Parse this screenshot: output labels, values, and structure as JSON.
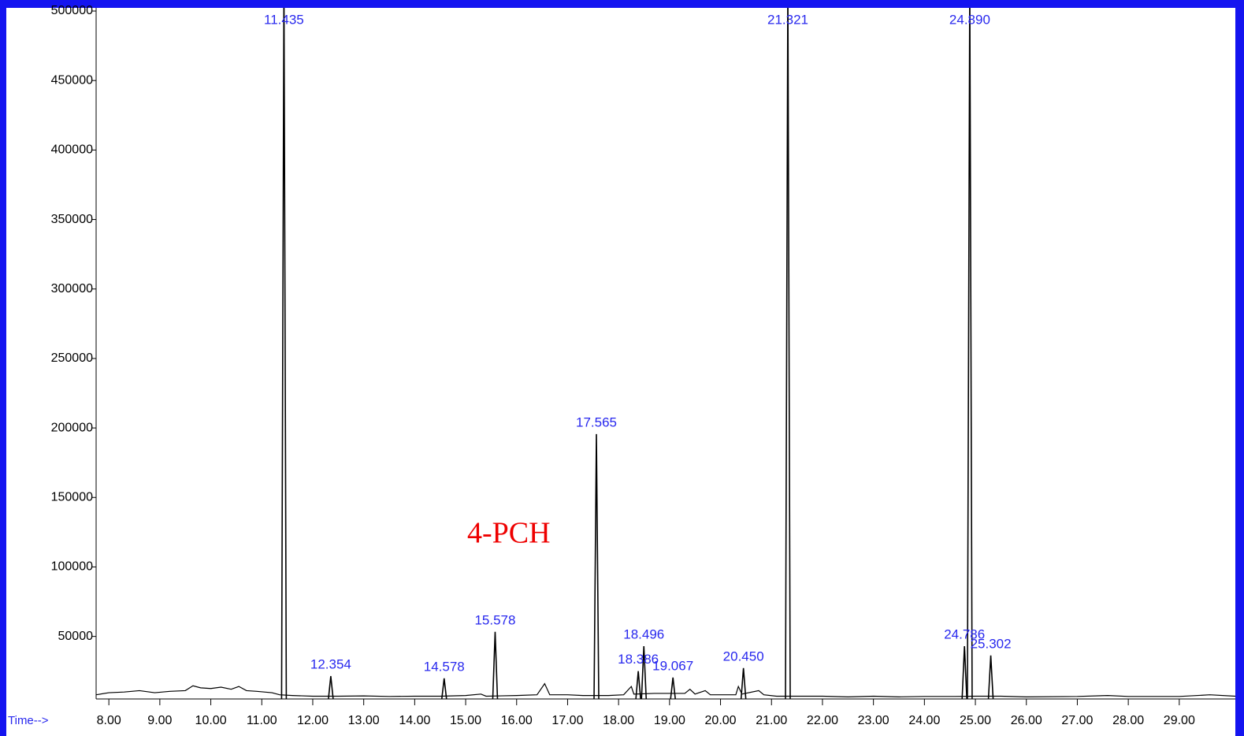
{
  "chart_data": {
    "type": "chromatogram",
    "x_label": "Time-->",
    "annotation": "4-PCH",
    "xlim": [
      7.75,
      30.1
    ],
    "ylim": [
      5000,
      505000
    ],
    "xticks": [
      {
        "value": 8,
        "label": "8.00"
      },
      {
        "value": 9,
        "label": "9.00"
      },
      {
        "value": 10,
        "label": "10.00"
      },
      {
        "value": 11,
        "label": "11.00"
      },
      {
        "value": 12,
        "label": "12.00"
      },
      {
        "value": 13,
        "label": "13.00"
      },
      {
        "value": 14,
        "label": "14.00"
      },
      {
        "value": 15,
        "label": "15.00"
      },
      {
        "value": 16,
        "label": "16.00"
      },
      {
        "value": 17,
        "label": "17.00"
      },
      {
        "value": 18,
        "label": "18.00"
      },
      {
        "value": 19,
        "label": "19.00"
      },
      {
        "value": 20,
        "label": "20.00"
      },
      {
        "value": 21,
        "label": "21.00"
      },
      {
        "value": 22,
        "label": "22.00"
      },
      {
        "value": 23,
        "label": "23.00"
      },
      {
        "value": 24,
        "label": "24.00"
      },
      {
        "value": 25,
        "label": "25.00"
      },
      {
        "value": 26,
        "label": "26.00"
      },
      {
        "value": 27,
        "label": "27.00"
      },
      {
        "value": 28,
        "label": "28.00"
      },
      {
        "value": 29,
        "label": "29.00"
      }
    ],
    "yticks": [
      50000,
      100000,
      150000,
      200000,
      250000,
      300000,
      350000,
      400000,
      450000,
      500000
    ],
    "trace": {
      "color": "#000000",
      "x": [
        7.75,
        8.0,
        8.3,
        8.6,
        8.9,
        9.2,
        9.5,
        9.65,
        9.8,
        10.0,
        10.2,
        10.4,
        10.55,
        10.7,
        10.9,
        11.2,
        11.35,
        11.6,
        12.0,
        12.5,
        13.0,
        13.5,
        14.0,
        14.5,
        15.0,
        15.3,
        15.4,
        16.0,
        16.4,
        16.55,
        16.65,
        17.0,
        17.3,
        17.8,
        18.1,
        18.25,
        18.3,
        18.7,
        19.3,
        19.4,
        19.5,
        19.7,
        19.8,
        20.3,
        20.35,
        20.42,
        20.75,
        20.85,
        21.1,
        21.6,
        22.0,
        22.5,
        23.0,
        23.5,
        24.0,
        24.6,
        25.0,
        25.5,
        26.0,
        27.0,
        27.6,
        28.0,
        29.0,
        29.6,
        30.1
      ],
      "values": [
        8000,
        9500,
        10000,
        11000,
        9500,
        10500,
        11000,
        14500,
        13000,
        12500,
        13500,
        12000,
        14000,
        11000,
        10500,
        9500,
        8000,
        7500,
        7000,
        7000,
        7200,
        6800,
        7000,
        7000,
        7500,
        8500,
        7000,
        7500,
        8000,
        16000,
        8000,
        8000,
        7500,
        7500,
        8000,
        14000,
        8500,
        9000,
        9000,
        12000,
        8500,
        11000,
        8000,
        8000,
        14000,
        8500,
        11000,
        8000,
        7000,
        7000,
        7000,
        6500,
        7000,
        6500,
        6800,
        6800,
        7000,
        7000,
        6500,
        6800,
        7500,
        6800,
        6800,
        8000,
        7000
      ]
    },
    "peaks": {
      "color": "#000000",
      "label_color": "#2828ee",
      "x": [
        11.435,
        12.354,
        14.578,
        15.578,
        17.565,
        18.386,
        18.496,
        19.067,
        20.45,
        21.321,
        24.786,
        24.89,
        25.302
      ],
      "values": [
        520000,
        21500,
        19800,
        53300,
        195600,
        25000,
        43000,
        20400,
        27200,
        520000,
        43000,
        520000,
        36300
      ],
      "labels": [
        "11.435",
        "12.354",
        "14.578",
        "15.578",
        "17.565",
        "18.386",
        "18.496",
        "19.067",
        "20.450",
        "21.321",
        "24.786",
        "24.890",
        "25.302"
      ]
    }
  }
}
